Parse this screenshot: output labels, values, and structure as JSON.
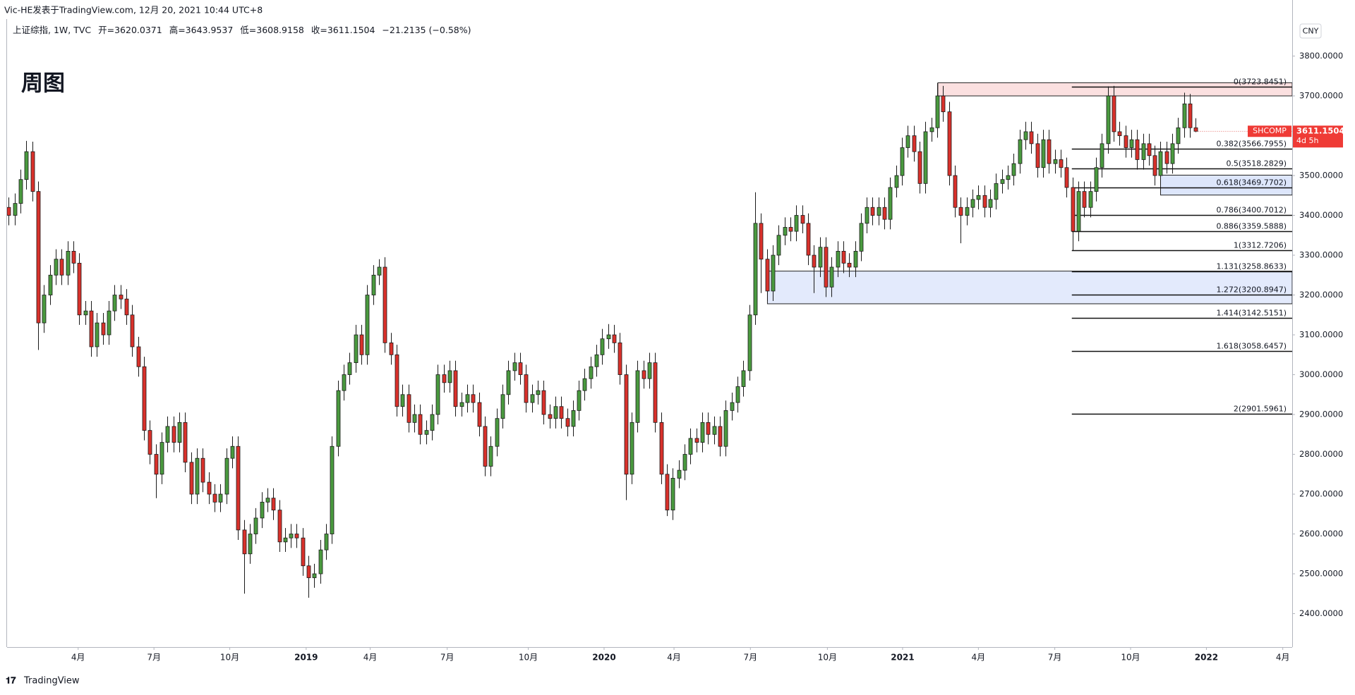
{
  "header": {
    "byline": "Vic-HE发表于TradingView.com, 12月 20, 2021 10:44 UTC+8",
    "symbol": "上证综指, 1W, TVC",
    "open_label": "开=",
    "high_label": "高=",
    "low_label": "低=",
    "close_label": "收=",
    "change": "−21.2135 (−0.58%)",
    "currency": "CNY",
    "footer": "TradingView"
  },
  "chart_data": {
    "type": "candlestick",
    "title": "周图",
    "up_color": "#4a9a3f",
    "down_color": "#d9312b",
    "ylim": [
      2316,
      3893
    ],
    "yticks": [
      {
        "value": 2400,
        "label": "2400.0000"
      },
      {
        "value": 2500,
        "label": "2500.0000"
      },
      {
        "value": 2600,
        "label": "2600.0000"
      },
      {
        "value": 2700,
        "label": "2700.0000"
      },
      {
        "value": 2800,
        "label": "2800.0000"
      },
      {
        "value": 2900,
        "label": "2900.0000"
      },
      {
        "value": 3000,
        "label": "3000.0000"
      },
      {
        "value": 3100,
        "label": "3100.0000"
      },
      {
        "value": 3200,
        "label": "3200.0000"
      },
      {
        "value": 3300,
        "label": "3300.0000"
      },
      {
        "value": 3400,
        "label": "3400.0000"
      },
      {
        "value": 3500,
        "label": "3500.0000"
      },
      {
        "value": 3600,
        "label": "3600.0000"
      },
      {
        "value": 3700,
        "label": "3700.0000"
      },
      {
        "value": 3800,
        "label": "3800.0000"
      }
    ],
    "xlim": [
      -0.3,
      218.4
    ],
    "xticks": [
      {
        "value": 11.8,
        "label": "4月"
      },
      {
        "value": 24.7,
        "label": "7月"
      },
      {
        "value": 37.6,
        "label": "10月"
      },
      {
        "value": 50.6,
        "label": "2019"
      },
      {
        "value": 61.5,
        "label": "4月"
      },
      {
        "value": 74.6,
        "label": "7月"
      },
      {
        "value": 88.4,
        "label": "10月"
      },
      {
        "value": 101.3,
        "label": "2020"
      },
      {
        "value": 113.2,
        "label": "4月"
      },
      {
        "value": 126.2,
        "label": "7月"
      },
      {
        "value": 139.3,
        "label": "10月"
      },
      {
        "value": 152.1,
        "label": "2021"
      },
      {
        "value": 165,
        "label": "4月"
      },
      {
        "value": 178,
        "label": "7月"
      },
      {
        "value": 190.9,
        "label": "10月"
      },
      {
        "value": 203.8,
        "label": "2022"
      },
      {
        "value": 216.8,
        "label": "4月"
      }
    ],
    "grid": false,
    "last_symbol": "SHCOMP",
    "countdown": "4d 5h",
    "fib_start": 180.9,
    "fib": [
      {
        "value": 3723.8451,
        "label": "0(3723.8451)"
      },
      {
        "value": 3566.7955,
        "label": "0.382(3566.7955)"
      },
      {
        "value": 3518.2829,
        "label": "0.5(3518.2829)"
      },
      {
        "value": 3469.7702,
        "label": "0.618(3469.7702)"
      },
      {
        "value": 3400.7012,
        "label": "0.786(3400.7012)"
      },
      {
        "value": 3359.5888,
        "label": "0.886(3359.5888)"
      },
      {
        "value": 3312.7206,
        "label": "1(3312.7206)"
      },
      {
        "value": 3258.8633,
        "label": "1.131(3258.8633)"
      },
      {
        "value": 3200.8947,
        "label": "1.272(3200.8947)"
      },
      {
        "value": 3142.5151,
        "label": "1.414(3142.5151)"
      },
      {
        "value": 3058.6457,
        "label": "1.618(3058.6457)"
      },
      {
        "value": 2901.5961,
        "label": "2(2901.5961)"
      }
    ],
    "zones": [
      {
        "x0": 158.1,
        "y0": 3700,
        "y1": 3733,
        "color": "#fbe0e0"
      },
      {
        "x0": 196,
        "y0": 3451,
        "y1": 3501,
        "color": "#dde6fb"
      },
      {
        "x0": 129.1,
        "y0": 3178,
        "y1": 3260,
        "color": "#e3eafc"
      }
    ],
    "candles": [
      [
        3420,
        3445,
        3375,
        3400
      ],
      [
        3400,
        3455,
        3375,
        3430
      ],
      [
        3430,
        3515,
        3405,
        3490
      ],
      [
        3490,
        3587,
        3465,
        3560
      ],
      [
        3560,
        3585,
        3435,
        3460
      ],
      [
        3460,
        3485,
        3062,
        3130
      ],
      [
        3130,
        3225,
        3105,
        3200
      ],
      [
        3200,
        3275,
        3175,
        3250
      ],
      [
        3250,
        3315,
        3225,
        3290
      ],
      [
        3290,
        3315,
        3225,
        3250
      ],
      [
        3250,
        3335,
        3225,
        3310
      ],
      [
        3310,
        3335,
        3255,
        3280
      ],
      [
        3280,
        3305,
        3125,
        3150
      ],
      [
        3150,
        3185,
        3125,
        3160
      ],
      [
        3160,
        3185,
        3045,
        3070
      ],
      [
        3070,
        3155,
        3045,
        3130
      ],
      [
        3130,
        3155,
        3075,
        3100
      ],
      [
        3100,
        3185,
        3075,
        3160
      ],
      [
        3160,
        3225,
        3135,
        3200
      ],
      [
        3200,
        3225,
        3165,
        3190
      ],
      [
        3190,
        3215,
        3125,
        3150
      ],
      [
        3150,
        3175,
        3045,
        3070
      ],
      [
        3070,
        3095,
        2995,
        3020
      ],
      [
        3020,
        3045,
        2835,
        2860
      ],
      [
        2860,
        2885,
        2775,
        2800
      ],
      [
        2800,
        2825,
        2690,
        2750
      ],
      [
        2750,
        2855,
        2725,
        2830
      ],
      [
        2830,
        2895,
        2805,
        2870
      ],
      [
        2870,
        2895,
        2805,
        2830
      ],
      [
        2830,
        2905,
        2805,
        2880
      ],
      [
        2880,
        2905,
        2755,
        2780
      ],
      [
        2780,
        2805,
        2675,
        2700
      ],
      [
        2700,
        2815,
        2675,
        2790
      ],
      [
        2790,
        2815,
        2705,
        2730
      ],
      [
        2730,
        2755,
        2675,
        2700
      ],
      [
        2700,
        2725,
        2655,
        2680
      ],
      [
        2680,
        2725,
        2655,
        2700
      ],
      [
        2700,
        2815,
        2675,
        2790
      ],
      [
        2790,
        2845,
        2765,
        2820
      ],
      [
        2820,
        2845,
        2585,
        2610
      ],
      [
        2610,
        2635,
        2450,
        2550
      ],
      [
        2550,
        2625,
        2525,
        2600
      ],
      [
        2600,
        2665,
        2575,
        2640
      ],
      [
        2640,
        2705,
        2615,
        2680
      ],
      [
        2680,
        2715,
        2655,
        2690
      ],
      [
        2690,
        2715,
        2635,
        2660
      ],
      [
        2660,
        2685,
        2555,
        2580
      ],
      [
        2580,
        2615,
        2555,
        2590
      ],
      [
        2590,
        2625,
        2565,
        2600
      ],
      [
        2600,
        2625,
        2565,
        2590
      ],
      [
        2590,
        2615,
        2495,
        2520
      ],
      [
        2520,
        2545,
        2440,
        2490
      ],
      [
        2490,
        2525,
        2465,
        2500
      ],
      [
        2500,
        2585,
        2475,
        2560
      ],
      [
        2560,
        2625,
        2535,
        2600
      ],
      [
        2600,
        2845,
        2575,
        2820
      ],
      [
        2820,
        2985,
        2795,
        2960
      ],
      [
        2960,
        3025,
        2935,
        3000
      ],
      [
        3000,
        3055,
        2975,
        3030
      ],
      [
        3030,
        3125,
        3005,
        3100
      ],
      [
        3100,
        3125,
        3025,
        3050
      ],
      [
        3050,
        3225,
        3025,
        3200
      ],
      [
        3200,
        3275,
        3175,
        3250
      ],
      [
        3250,
        3290,
        3225,
        3270
      ],
      [
        3270,
        3295,
        3055,
        3080
      ],
      [
        3080,
        3105,
        3025,
        3050
      ],
      [
        3050,
        3075,
        2895,
        2920
      ],
      [
        2920,
        2975,
        2895,
        2950
      ],
      [
        2950,
        2975,
        2855,
        2880
      ],
      [
        2880,
        2925,
        2855,
        2900
      ],
      [
        2900,
        2925,
        2825,
        2850
      ],
      [
        2850,
        2885,
        2825,
        2860
      ],
      [
        2860,
        2925,
        2835,
        2900
      ],
      [
        2900,
        3025,
        2875,
        3000
      ],
      [
        3000,
        3025,
        2955,
        2980
      ],
      [
        2980,
        3035,
        2955,
        3010
      ],
      [
        3010,
        3035,
        2895,
        2920
      ],
      [
        2920,
        2955,
        2895,
        2930
      ],
      [
        2930,
        2975,
        2905,
        2950
      ],
      [
        2950,
        2975,
        2905,
        2930
      ],
      [
        2930,
        2955,
        2845,
        2870
      ],
      [
        2870,
        2895,
        2745,
        2770
      ],
      [
        2770,
        2845,
        2745,
        2820
      ],
      [
        2820,
        2915,
        2795,
        2890
      ],
      [
        2890,
        2975,
        2865,
        2950
      ],
      [
        2950,
        3035,
        2925,
        3010
      ],
      [
        3010,
        3055,
        2985,
        3030
      ],
      [
        3030,
        3055,
        2975,
        3000
      ],
      [
        3000,
        3025,
        2905,
        2930
      ],
      [
        2930,
        2975,
        2905,
        2950
      ],
      [
        2950,
        2985,
        2925,
        2960
      ],
      [
        2960,
        2985,
        2875,
        2900
      ],
      [
        2900,
        2925,
        2865,
        2890
      ],
      [
        2890,
        2945,
        2865,
        2920
      ],
      [
        2920,
        2945,
        2865,
        2890
      ],
      [
        2890,
        2915,
        2845,
        2870
      ],
      [
        2870,
        2935,
        2845,
        2910
      ],
      [
        2910,
        2985,
        2885,
        2960
      ],
      [
        2960,
        3015,
        2935,
        2990
      ],
      [
        2990,
        3045,
        2965,
        3020
      ],
      [
        3020,
        3075,
        2995,
        3050
      ],
      [
        3050,
        3115,
        3025,
        3090
      ],
      [
        3090,
        3127,
        3065,
        3100
      ],
      [
        3100,
        3125,
        3055,
        3080
      ],
      [
        3080,
        3105,
        2975,
        3000
      ],
      [
        3000,
        3025,
        2685,
        2750
      ],
      [
        2750,
        2905,
        2725,
        2880
      ],
      [
        2880,
        3035,
        2855,
        3010
      ],
      [
        3010,
        3035,
        2965,
        2990
      ],
      [
        2990,
        3055,
        2965,
        3030
      ],
      [
        3030,
        3055,
        2855,
        2880
      ],
      [
        2880,
        2905,
        2725,
        2750
      ],
      [
        2750,
        2775,
        2645,
        2660
      ],
      [
        2660,
        2765,
        2635,
        2740
      ],
      [
        2740,
        2785,
        2715,
        2760
      ],
      [
        2760,
        2825,
        2735,
        2800
      ],
      [
        2800,
        2865,
        2775,
        2840
      ],
      [
        2840,
        2865,
        2805,
        2830
      ],
      [
        2830,
        2905,
        2805,
        2880
      ],
      [
        2880,
        2905,
        2825,
        2850
      ],
      [
        2850,
        2895,
        2825,
        2870
      ],
      [
        2870,
        2895,
        2795,
        2820
      ],
      [
        2820,
        2935,
        2795,
        2910
      ],
      [
        2910,
        2955,
        2885,
        2930
      ],
      [
        2930,
        2995,
        2905,
        2970
      ],
      [
        2970,
        3035,
        2945,
        3010
      ],
      [
        3010,
        3175,
        2985,
        3150
      ],
      [
        3150,
        3458,
        3125,
        3380
      ],
      [
        3380,
        3405,
        3205,
        3290
      ],
      [
        3290,
        3315,
        3185,
        3210
      ],
      [
        3210,
        3325,
        3185,
        3300
      ],
      [
        3300,
        3375,
        3275,
        3350
      ],
      [
        3350,
        3395,
        3325,
        3370
      ],
      [
        3370,
        3395,
        3335,
        3360
      ],
      [
        3360,
        3425,
        3335,
        3400
      ],
      [
        3400,
        3425,
        3355,
        3380
      ],
      [
        3380,
        3405,
        3275,
        3300
      ],
      [
        3300,
        3325,
        3205,
        3270
      ],
      [
        3270,
        3345,
        3245,
        3320
      ],
      [
        3320,
        3345,
        3195,
        3220
      ],
      [
        3220,
        3295,
        3195,
        3270
      ],
      [
        3270,
        3335,
        3245,
        3310
      ],
      [
        3310,
        3335,
        3255,
        3280
      ],
      [
        3280,
        3305,
        3245,
        3270
      ],
      [
        3270,
        3335,
        3245,
        3310
      ],
      [
        3310,
        3405,
        3285,
        3380
      ],
      [
        3380,
        3445,
        3355,
        3420
      ],
      [
        3420,
        3445,
        3375,
        3400
      ],
      [
        3400,
        3445,
        3375,
        3420
      ],
      [
        3420,
        3445,
        3365,
        3390
      ],
      [
        3390,
        3495,
        3365,
        3470
      ],
      [
        3470,
        3525,
        3445,
        3500
      ],
      [
        3500,
        3595,
        3475,
        3570
      ],
      [
        3570,
        3625,
        3545,
        3600
      ],
      [
        3600,
        3625,
        3535,
        3560
      ],
      [
        3560,
        3585,
        3455,
        3480
      ],
      [
        3480,
        3635,
        3455,
        3610
      ],
      [
        3610,
        3645,
        3585,
        3620
      ],
      [
        3620,
        3732,
        3595,
        3700
      ],
      [
        3700,
        3725,
        3635,
        3660
      ],
      [
        3660,
        3685,
        3475,
        3500
      ],
      [
        3500,
        3525,
        3395,
        3420
      ],
      [
        3420,
        3445,
        3330,
        3400
      ],
      [
        3400,
        3445,
        3375,
        3420
      ],
      [
        3420,
        3465,
        3395,
        3440
      ],
      [
        3440,
        3475,
        3415,
        3450
      ],
      [
        3450,
        3475,
        3395,
        3420
      ],
      [
        3420,
        3465,
        3395,
        3440
      ],
      [
        3440,
        3505,
        3415,
        3480
      ],
      [
        3480,
        3515,
        3455,
        3490
      ],
      [
        3490,
        3525,
        3465,
        3500
      ],
      [
        3500,
        3555,
        3475,
        3530
      ],
      [
        3530,
        3615,
        3505,
        3590
      ],
      [
        3590,
        3635,
        3565,
        3610
      ],
      [
        3610,
        3635,
        3555,
        3580
      ],
      [
        3580,
        3605,
        3495,
        3520
      ],
      [
        3520,
        3615,
        3495,
        3590
      ],
      [
        3590,
        3615,
        3505,
        3530
      ],
      [
        3530,
        3565,
        3505,
        3540
      ],
      [
        3540,
        3565,
        3495,
        3520
      ],
      [
        3520,
        3545,
        3445,
        3470
      ],
      [
        3470,
        3495,
        3312,
        3360
      ],
      [
        3360,
        3485,
        3335,
        3460
      ],
      [
        3460,
        3485,
        3395,
        3420
      ],
      [
        3420,
        3485,
        3395,
        3460
      ],
      [
        3460,
        3545,
        3435,
        3520
      ],
      [
        3520,
        3605,
        3495,
        3580
      ],
      [
        3580,
        3724,
        3555,
        3700
      ],
      [
        3700,
        3725,
        3585,
        3610
      ],
      [
        3610,
        3635,
        3575,
        3600
      ],
      [
        3600,
        3625,
        3545,
        3570
      ],
      [
        3570,
        3615,
        3545,
        3590
      ],
      [
        3590,
        3615,
        3515,
        3540
      ],
      [
        3540,
        3605,
        3515,
        3580
      ],
      [
        3580,
        3605,
        3525,
        3550
      ],
      [
        3550,
        3575,
        3475,
        3500
      ],
      [
        3500,
        3585,
        3475,
        3560
      ],
      [
        3560,
        3585,
        3505,
        3530
      ],
      [
        3530,
        3605,
        3505,
        3580
      ],
      [
        3580,
        3645,
        3555,
        3620
      ],
      [
        3620,
        3708,
        3595,
        3680
      ],
      [
        3680,
        3705,
        3595,
        3620
      ],
      [
        3620.0371,
        3643.9537,
        3608.9158,
        3611.1504
      ]
    ]
  }
}
